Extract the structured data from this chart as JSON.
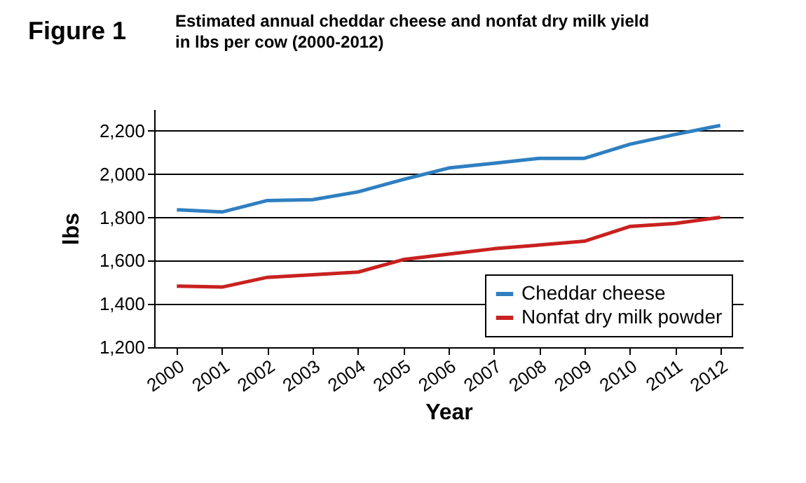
{
  "chart_data": {
    "type": "line",
    "title": [
      "Estimated annual cheddar cheese and nonfat dry milk yield",
      "in lbs per cow (2000-2012)"
    ],
    "annotations": [
      "Figure 1"
    ],
    "xlabel": "Year",
    "ylabel": "lbs",
    "categories": [
      "2000",
      "2001",
      "2002",
      "2003",
      "2004",
      "2005",
      "2006",
      "2007",
      "2008",
      "2009",
      "2010",
      "2011",
      "2012"
    ],
    "series": [
      {
        "name": "Cheddar cheese",
        "color": "#2f7fc1",
        "values": [
          1835,
          1825,
          1878,
          1882,
          1918,
          1975,
          2028,
          2050,
          2073,
          2073,
          2138,
          2183,
          2225
        ]
      },
      {
        "name": "Nonfat dry milk powder",
        "color": "#c8211f",
        "values": [
          1482,
          1478,
          1523,
          1535,
          1547,
          1605,
          1630,
          1655,
          1672,
          1690,
          1758,
          1772,
          1800
        ]
      }
    ],
    "ylim": [
      1200,
      2300
    ],
    "yticks": [
      {
        "value": 1200,
        "label": "1,200"
      },
      {
        "value": 1400,
        "label": "1,400"
      },
      {
        "value": 1600,
        "label": "1,600"
      },
      {
        "value": 1800,
        "label": "1,800"
      },
      {
        "value": 2000,
        "label": "2,000"
      },
      {
        "value": 2200,
        "label": "2,200"
      }
    ],
    "grid": "y",
    "legend": "bottom right",
    "marker": "none",
    "line_style": "solid"
  }
}
